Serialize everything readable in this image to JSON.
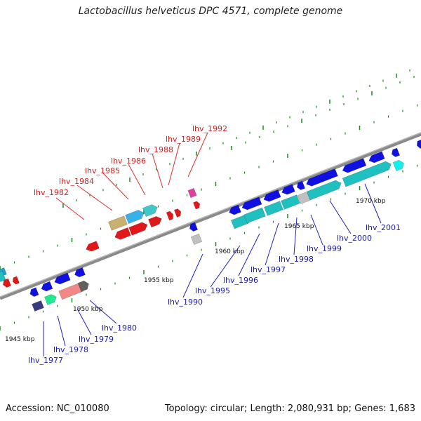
{
  "title": "Lactobacillus helveticus DPC 4571, complete genome",
  "footer": {
    "accession": "Accession: NC_010080",
    "info": "Topology: circular; Length: 2,080,931 bp; Genes: 1,683"
  },
  "colors": {
    "backbone": "#8a8a8a",
    "tick": "#1a8a1a",
    "red_label": "#d42020",
    "blue_label": "#1a1ab0"
  },
  "kbp_labels": [
    "1945 kbp",
    "1950 kbp",
    "1955 kbp",
    "1960 kbp",
    "1965 kbp",
    "1970 kbp"
  ],
  "top_genes": [
    "lhv_1982",
    "lhv_1984",
    "lhv_1985",
    "lhv_1986",
    "lhv_1988",
    "lhv_1989",
    "lhv_1992"
  ],
  "bottom_genes": [
    "lhv_1977",
    "lhv_1978",
    "lhv_1979",
    "lhv_1980",
    "lhv_1990",
    "lhv_1995",
    "lhv_1996",
    "lhv_1997",
    "lhv_1998",
    "lhv_1999",
    "lhv_2000",
    "lhv_2001"
  ]
}
